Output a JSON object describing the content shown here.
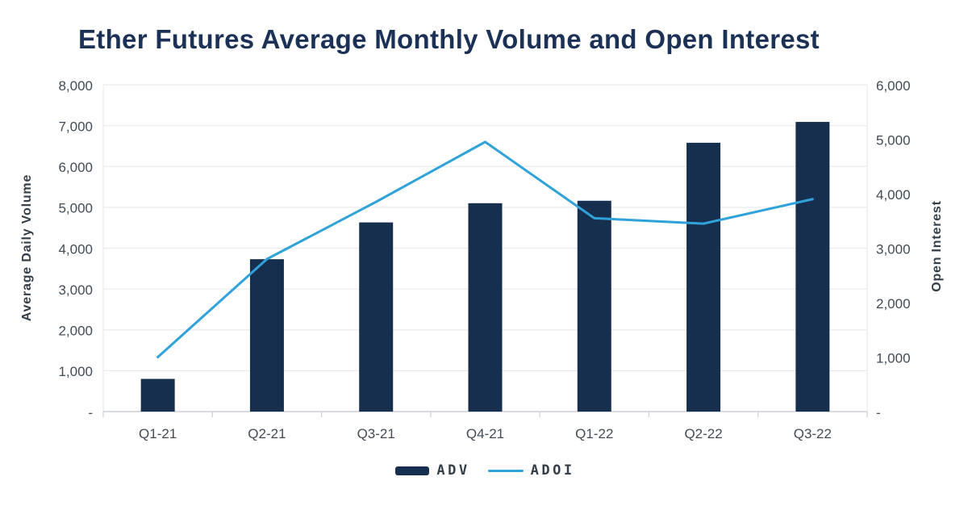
{
  "title": "Ether Futures Average Monthly Volume and Open Interest",
  "chart_data": {
    "type": "bar+line",
    "categories": [
      "Q1-21",
      "Q2-21",
      "Q3-21",
      "Q4-21",
      "Q1-22",
      "Q2-22",
      "Q3-22"
    ],
    "series": [
      {
        "name": "ADV",
        "type": "bar",
        "axis": "left",
        "color": "#172f4e",
        "values": [
          800,
          3730,
          4630,
          5100,
          5160,
          6580,
          7090
        ]
      },
      {
        "name": "ADOI",
        "type": "line",
        "axis": "right",
        "color": "#30a2da",
        "values": [
          1000,
          2800,
          3850,
          4950,
          3550,
          3450,
          3900
        ]
      }
    ],
    "left_axis": {
      "label": "Average Daily Volume",
      "min": 0,
      "max": 8000,
      "step": 1000,
      "tick_labels": [
        "-",
        "1,000",
        "2,000",
        "3,000",
        "4,000",
        "5,000",
        "6,000",
        "7,000",
        "8,000"
      ]
    },
    "right_axis": {
      "label": "Open Interest",
      "min": 0,
      "max": 6000,
      "step": 1000,
      "tick_labels": [
        "-",
        "1,000",
        "2,000",
        "3,000",
        "4,000",
        "5,000",
        "6,000"
      ]
    },
    "grid": true,
    "legend_position": "bottom"
  },
  "theme": {
    "title_color": "#1c3156",
    "tick_color": "#414b55",
    "axis_title_color": "#333e48",
    "grid_color": "#e9ebee",
    "axis_line_color": "#ccd1d6",
    "legend_label_color": "#333e48",
    "background": "#ffffff"
  }
}
